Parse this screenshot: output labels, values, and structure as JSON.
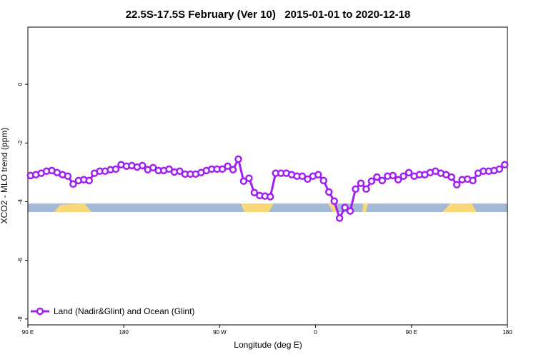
{
  "chart_data": {
    "type": "line",
    "title": "22.5S-17.5S February (Ver 10)   2015-01-01 to 2020-12-18",
    "xlabel": "Longitude (deg E)",
    "ylabel": "XCO2 - MLO trend (ppm)",
    "xlim": [
      90,
      540
    ],
    "ylim": [
      -8.2,
      1.95
    ],
    "xticks": [
      {
        "value": 90,
        "label": "90 E"
      },
      180,
      {
        "value": 270,
        "label": "90 W"
      },
      {
        "value": 360,
        "label": "0"
      },
      {
        "value": 450,
        "label": "90 E"
      },
      {
        "value": 540,
        "label": "180"
      }
    ],
    "yticks": [
      0,
      -2,
      -4,
      -6,
      -8
    ],
    "legend": "bottom-left",
    "x": [
      92.5,
      97.5,
      102.5,
      107.5,
      112.5,
      117.5,
      122.5,
      127.5,
      132.5,
      137.5,
      142.5,
      147.5,
      152.5,
      157.5,
      162.5,
      167.5,
      172.5,
      177.5,
      182.5,
      187.5,
      192.5,
      197.5,
      202.5,
      207.5,
      212.5,
      217.5,
      222.5,
      227.5,
      232.5,
      237.5,
      242.5,
      247.5,
      252.5,
      257.5,
      262.5,
      267.5,
      272.5,
      277.5,
      282.5,
      287.5,
      292.5,
      297.5,
      302.5,
      307.5,
      312.5,
      317.5,
      322.5,
      327.5,
      332.5,
      337.5,
      342.5,
      347.5,
      352.5,
      357.5,
      362.5,
      367.5,
      372.5,
      377.5,
      382.5,
      387.5,
      392.5,
      397.5,
      402.5,
      407.5,
      412.5,
      417.5,
      422.5,
      427.5,
      432.5,
      437.5,
      442.5,
      447.5,
      452.5,
      457.5,
      462.5,
      467.5,
      472.5,
      477.5,
      482.5,
      487.5,
      492.5,
      497.5,
      502.5,
      507.5,
      512.5,
      517.5,
      522.5,
      527.5,
      532.5,
      537.5
    ],
    "series": [
      {
        "name": "Land (Nadir&Glint) and Ocean (Glint)",
        "color": "#a020f0",
        "values": [
          -3.11,
          -3.08,
          -3.03,
          -2.96,
          -2.94,
          -3.01,
          -3.08,
          -3.13,
          -3.4,
          -3.28,
          -3.25,
          -3.28,
          -3.03,
          -2.96,
          -2.96,
          -2.91,
          -2.89,
          -2.74,
          -2.79,
          -2.77,
          -2.82,
          -2.77,
          -2.91,
          -2.84,
          -2.94,
          -2.94,
          -2.89,
          -2.99,
          -2.96,
          -3.06,
          -3.06,
          -3.06,
          -3.01,
          -2.94,
          -2.89,
          -2.89,
          -2.89,
          -2.79,
          -2.91,
          -2.55,
          -3.3,
          -3.2,
          -3.69,
          -3.79,
          -3.81,
          -3.83,
          -3.03,
          -3.03,
          -3.03,
          -3.08,
          -3.13,
          -3.13,
          -3.23,
          -3.13,
          -3.08,
          -3.28,
          -3.67,
          -3.98,
          -4.56,
          -4.2,
          -4.32,
          -3.57,
          -3.37,
          -3.57,
          -3.3,
          -3.16,
          -3.28,
          -3.13,
          -3.11,
          -3.25,
          -3.13,
          -3.01,
          -3.13,
          -3.08,
          -3.08,
          -3.01,
          -2.96,
          -3.03,
          -3.08,
          -3.16,
          -3.42,
          -3.25,
          -3.23,
          -3.28,
          -3.03,
          -2.96,
          -2.96,
          -2.94,
          -2.89,
          -2.74
        ]
      }
    ]
  }
}
